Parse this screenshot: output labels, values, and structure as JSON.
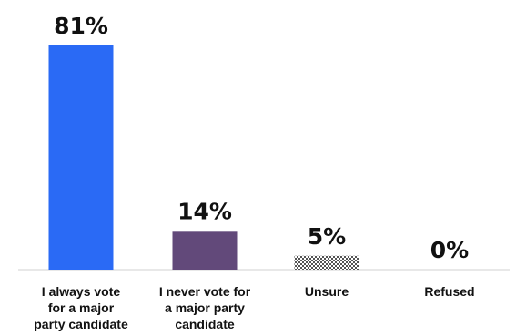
{
  "chart_data": {
    "type": "bar",
    "categories": [
      [
        "I always vote",
        "for a major",
        "party candidate"
      ],
      [
        "I never vote for",
        "a major party",
        "candidate"
      ],
      [
        "Unsure"
      ],
      [
        "Refused"
      ]
    ],
    "values": [
      81,
      14,
      5,
      0
    ],
    "value_labels": [
      "81%",
      "14%",
      "5%",
      "0%"
    ],
    "colors": [
      "#2a6af5",
      "#62497a",
      "#666666",
      "#ffffff"
    ],
    "patterns": [
      "solid",
      "solid",
      "checker",
      "solid"
    ],
    "ylim": [
      0,
      100
    ]
  }
}
